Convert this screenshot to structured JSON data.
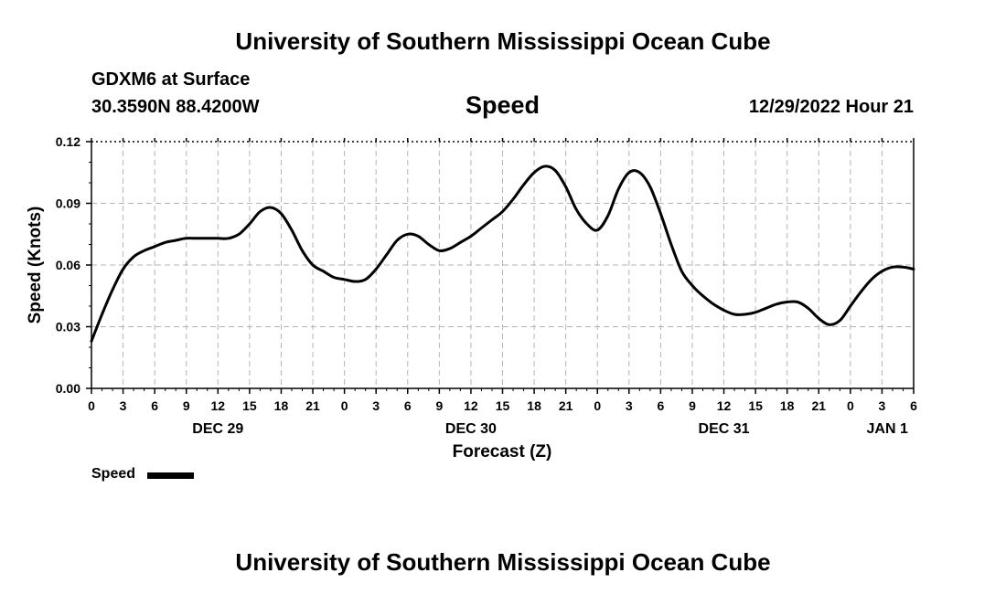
{
  "header": {
    "top_title": "University of Southern Mississippi Ocean Cube",
    "station": "GDXM6 at Surface",
    "coords": "30.3590N  88.4200W",
    "datetime": "12/29/2022 Hour 21"
  },
  "footer": {
    "bottom_title": "University of Southern Mississippi Ocean Cube"
  },
  "legend": {
    "label": "Speed"
  },
  "colors": {
    "line": "#000000",
    "grid": "#b4b4b4"
  },
  "chart_data": {
    "type": "line",
    "title": "Speed",
    "xlabel": "Forecast (Z)",
    "ylabel": "Speed (Knots)",
    "xlim": [
      0,
      78
    ],
    "ylim": [
      0.0,
      0.12
    ],
    "grid": true,
    "x_ticks": [
      0,
      3,
      6,
      9,
      12,
      15,
      18,
      21,
      24,
      27,
      30,
      33,
      36,
      39,
      42,
      45,
      48,
      51,
      54,
      57,
      60,
      63,
      66,
      69,
      72,
      75,
      78
    ],
    "x_tick_labels": [
      "0",
      "3",
      "6",
      "9",
      "12",
      "15",
      "18",
      "21",
      "0",
      "3",
      "6",
      "9",
      "12",
      "15",
      "18",
      "21",
      "0",
      "3",
      "6",
      "9",
      "12",
      "15",
      "18",
      "21",
      "0",
      "3",
      "6"
    ],
    "y_ticks": [
      0.0,
      0.03,
      0.06,
      0.09,
      0.12
    ],
    "y_tick_labels": [
      "0.00",
      "0.03",
      "0.06",
      "0.09",
      "0.12"
    ],
    "day_labels": [
      {
        "label": "DEC 29",
        "x": 12
      },
      {
        "label": "DEC 30",
        "x": 36
      },
      {
        "label": "DEC 31",
        "x": 60
      },
      {
        "label": "JAN 1",
        "x": 75.5
      }
    ],
    "series": [
      {
        "name": "Speed",
        "x": [
          0,
          1,
          2,
          3,
          4,
          5,
          6,
          7,
          8,
          9,
          10,
          11,
          12,
          13,
          14,
          15,
          16,
          17,
          18,
          19,
          20,
          21,
          22,
          23,
          24,
          25,
          26,
          27,
          28,
          29,
          30,
          31,
          32,
          33,
          34,
          35,
          36,
          37,
          38,
          39,
          40,
          41,
          42,
          43,
          44,
          45,
          46,
          47,
          48,
          49,
          50,
          51,
          52,
          53,
          54,
          55,
          56,
          57,
          58,
          59,
          60,
          61,
          62,
          63,
          64,
          65,
          66,
          67,
          68,
          69,
          70,
          71,
          72,
          73,
          74,
          75,
          76,
          77,
          78
        ],
        "values": [
          0.023,
          0.036,
          0.048,
          0.058,
          0.064,
          0.067,
          0.069,
          0.071,
          0.072,
          0.073,
          0.073,
          0.073,
          0.073,
          0.073,
          0.075,
          0.08,
          0.086,
          0.088,
          0.085,
          0.077,
          0.067,
          0.06,
          0.057,
          0.054,
          0.053,
          0.052,
          0.053,
          0.058,
          0.065,
          0.072,
          0.075,
          0.074,
          0.07,
          0.067,
          0.068,
          0.071,
          0.074,
          0.078,
          0.082,
          0.086,
          0.092,
          0.099,
          0.105,
          0.108,
          0.106,
          0.098,
          0.087,
          0.08,
          0.077,
          0.084,
          0.097,
          0.105,
          0.105,
          0.098,
          0.085,
          0.07,
          0.057,
          0.05,
          0.045,
          0.041,
          0.038,
          0.036,
          0.036,
          0.037,
          0.039,
          0.041,
          0.042,
          0.042,
          0.039,
          0.034,
          0.031,
          0.033,
          0.04,
          0.047,
          0.053,
          0.057,
          0.059,
          0.059,
          0.058
        ]
      }
    ]
  }
}
